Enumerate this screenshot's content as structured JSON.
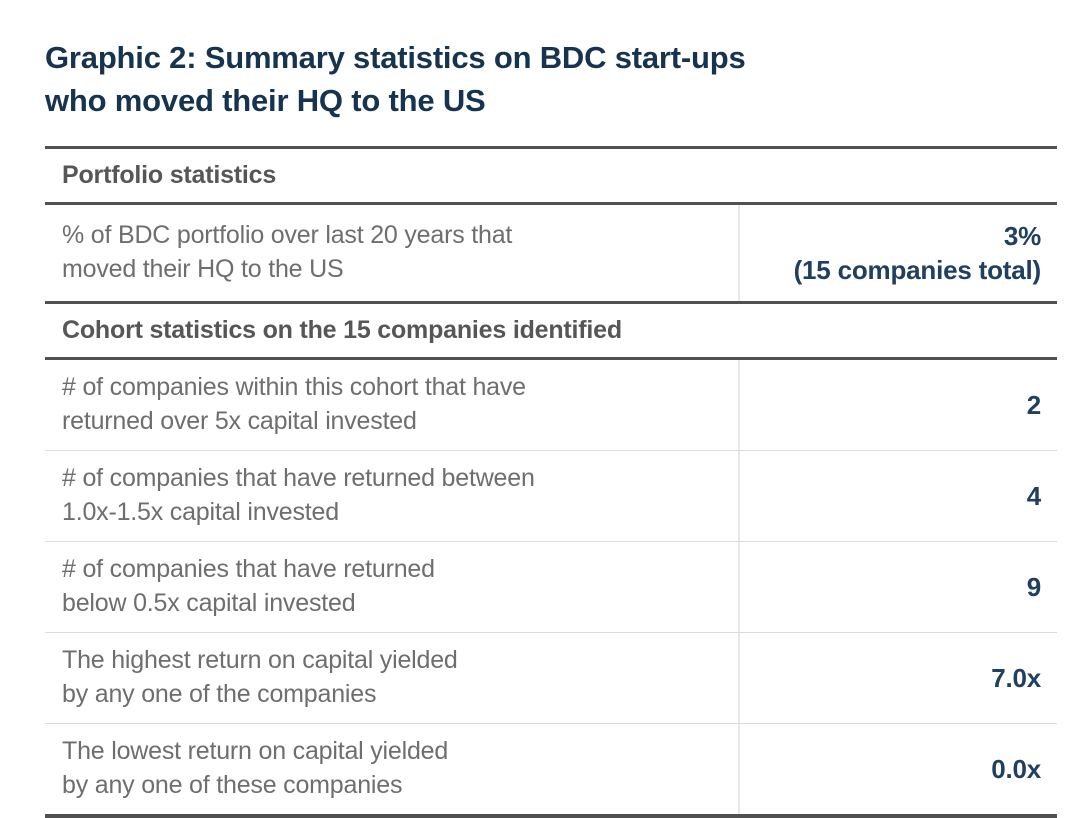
{
  "page_title": {
    "line1": "Graphic 2: Summary statistics on BDC start-ups",
    "line2": "who moved their HQ to the US"
  },
  "table": {
    "sections": [
      {
        "header": "Portfolio statistics",
        "rows": [
          {
            "label_lines": [
              "% of BDC portfolio over last 20 years that",
              "moved their HQ to the US"
            ],
            "value_lines": [
              "3%",
              "(15 companies total)"
            ]
          }
        ]
      },
      {
        "header": "Cohort statistics on the 15 companies identified",
        "rows": [
          {
            "label_lines": [
              "# of companies within this cohort that have",
              "returned over 5x capital invested"
            ],
            "value_lines": [
              "2"
            ]
          },
          {
            "label_lines": [
              "# of companies that have returned between",
              "1.0x-1.5x capital invested"
            ],
            "value_lines": [
              "4"
            ]
          },
          {
            "label_lines": [
              "# of companies that have returned",
              "below 0.5x capital invested"
            ],
            "value_lines": [
              "9"
            ]
          },
          {
            "label_lines": [
              "The highest return on capital yielded",
              "by any one of the companies"
            ],
            "value_lines": [
              "7.0x"
            ]
          },
          {
            "label_lines": [
              "The lowest return on capital yielded",
              "by any one of these companies"
            ],
            "value_lines": [
              "0.0x"
            ]
          }
        ]
      }
    ]
  },
  "chart_data": {
    "type": "table",
    "title": "Graphic 2: Summary statistics on BDC start-ups who moved their HQ to the US",
    "sections": [
      {
        "header": "Portfolio statistics",
        "rows": [
          {
            "label": "% of BDC portfolio over last 20 years that moved their HQ to the US",
            "value": "3% (15 companies total)"
          }
        ]
      },
      {
        "header": "Cohort statistics on the 15 companies identified",
        "rows": [
          {
            "label": "# of companies within this cohort that have returned over 5x capital invested",
            "value": 2
          },
          {
            "label": "# of companies that have returned between 1.0x-1.5x capital invested",
            "value": 4
          },
          {
            "label": "# of companies that have returned below 0.5x capital invested",
            "value": 9
          },
          {
            "label": "The highest return on capital yielded by any one of the companies",
            "value": "7.0x"
          },
          {
            "label": "The lowest return on capital yielded by any one of these companies",
            "value": "0.0x"
          }
        ]
      }
    ]
  },
  "colors": {
    "title_navy": "#16334f",
    "value_navy": "#20405f",
    "header_gray": "#565656",
    "body_gray": "#6e6e6e",
    "rule_dark": "#515151",
    "rule_light": "#dcdcdc",
    "divider_light": "#e8e8e8"
  }
}
